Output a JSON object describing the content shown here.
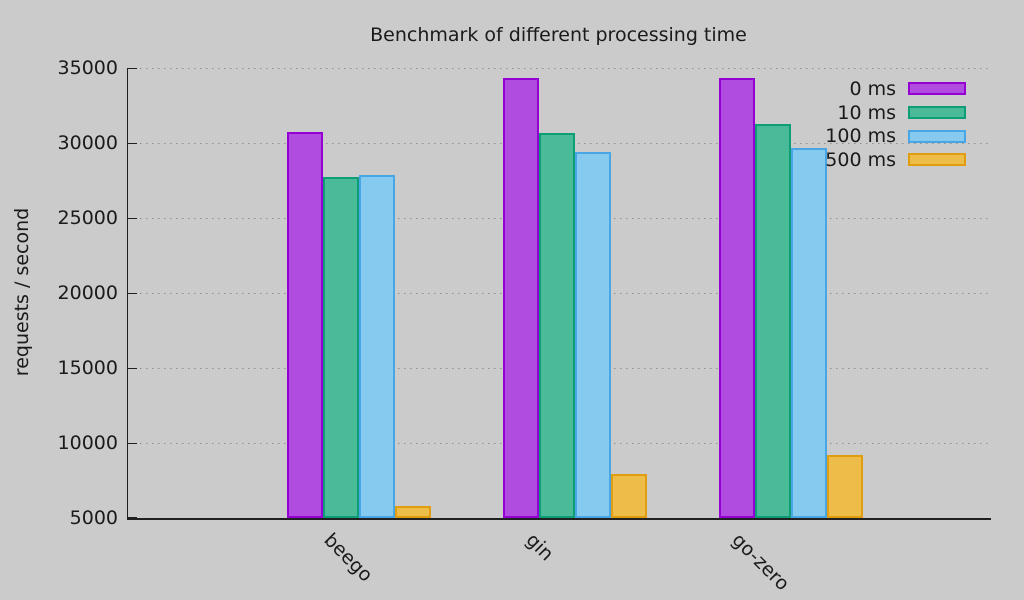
{
  "background": "#cbcbcb",
  "chart_data": {
    "type": "bar",
    "title": "Benchmark of different processing time",
    "ylabel": "requests / second",
    "xlabel": "",
    "categories": [
      "beego",
      "gin",
      "go-zero"
    ],
    "series": [
      {
        "name": "0 ms",
        "fill": "#b04ce0",
        "border": "#9400d3",
        "values": [
          30700,
          34350,
          34300
        ]
      },
      {
        "name": "10 ms",
        "fill": "#4bba98",
        "border": "#0e9e77",
        "values": [
          27700,
          30650,
          31250
        ]
      },
      {
        "name": "100 ms",
        "fill": "#87caf0",
        "border": "#47a6e3",
        "values": [
          27850,
          29400,
          29650
        ]
      },
      {
        "name": "500 ms",
        "fill": "#edbc49",
        "border": "#e09d10",
        "values": [
          5800,
          7900,
          9200
        ]
      }
    ],
    "ylim": [
      5000,
      35000
    ],
    "ytick_step": 5000,
    "ytick_labels": [
      "5000",
      "10000",
      "15000",
      "20000",
      "25000",
      "30000",
      "35000"
    ],
    "grid": "horizontal-dotted",
    "legend_position": "top-right"
  }
}
